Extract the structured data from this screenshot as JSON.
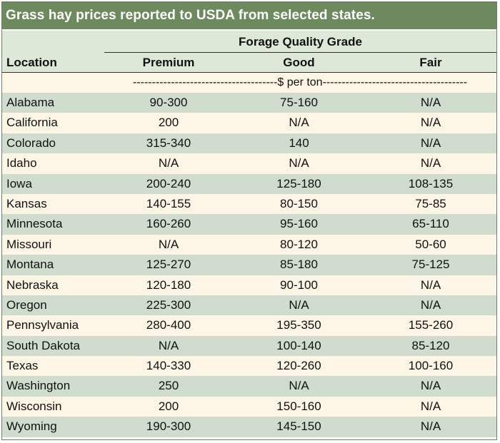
{
  "title": "Grass hay prices reported to USDA from selected states.",
  "header": {
    "group_label": "Forage Quality Grade",
    "location_label": "Location",
    "columns": [
      "Premium",
      "Good",
      "Fair"
    ]
  },
  "unit_label": "--------------------------------------$ per ton--------------------------------------",
  "colors": {
    "title_bg": "#6d8a5e",
    "row_green": "#cfdcce",
    "row_cream": "#fdf6e6"
  },
  "rows": [
    {
      "location": "Alabama",
      "premium": "90-300",
      "good": "75-160",
      "fair": "N/A"
    },
    {
      "location": "California",
      "premium": "200",
      "good": "N/A",
      "fair": "N/A"
    },
    {
      "location": "Colorado",
      "premium": "315-340",
      "good": "140",
      "fair": "N/A"
    },
    {
      "location": "Idaho",
      "premium": "N/A",
      "good": "N/A",
      "fair": "N/A"
    },
    {
      "location": "Iowa",
      "premium": "200-240",
      "good": "125-180",
      "fair": "108-135"
    },
    {
      "location": "Kansas",
      "premium": "140-155",
      "good": "80-150",
      "fair": "75-85"
    },
    {
      "location": "Minnesota",
      "premium": "160-260",
      "good": "95-160",
      "fair": "65-110"
    },
    {
      "location": "Missouri",
      "premium": "N/A",
      "good": "80-120",
      "fair": "50-60"
    },
    {
      "location": "Montana",
      "premium": "125-270",
      "good": "85-180",
      "fair": "75-125"
    },
    {
      "location": "Nebraska",
      "premium": "120-180",
      "good": "90-100",
      "fair": "N/A"
    },
    {
      "location": "Oregon",
      "premium": "225-300",
      "good": "N/A",
      "fair": "N/A"
    },
    {
      "location": "Pennsylvania",
      "premium": "280-400",
      "good": "195-350",
      "fair": "155-260"
    },
    {
      "location": "South Dakota",
      "premium": "N/A",
      "good": "100-140",
      "fair": "85-120"
    },
    {
      "location": "Texas",
      "premium": "140-330",
      "good": "120-260",
      "fair": "100-160"
    },
    {
      "location": "Washington",
      "premium": "250",
      "good": "N/A",
      "fair": "N/A"
    },
    {
      "location": "Wisconsin",
      "premium": "200",
      "good": "150-160",
      "fair": "N/A"
    },
    {
      "location": "Wyoming",
      "premium": "190-300",
      "good": "145-150",
      "fair": "N/A"
    }
  ]
}
